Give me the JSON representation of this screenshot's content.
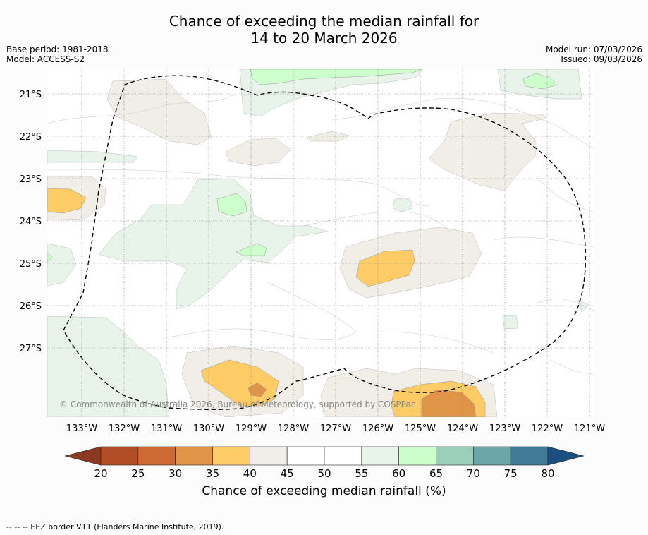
{
  "title_line1": "Chance of exceeding the median rainfall for",
  "title_line2": "14 to 20 March 2026",
  "base_period": "Base period: 1981-2018",
  "model": "Model: ACCESS-S2",
  "model_run": "Model run: 07/03/2026",
  "issued": "Issued: 09/03/2026",
  "copyright": "© Commonwealth of Australia 2026, Bureau of Meteorology, supported by COSPPac",
  "lat_labels": [
    "21°S",
    "22°S",
    "23°S",
    "24°S",
    "25°S",
    "26°S",
    "27°S"
  ],
  "lon_labels": [
    "133°W",
    "132°W",
    "131°W",
    "130°W",
    "129°W",
    "128°W",
    "127°W",
    "126°W",
    "125°W",
    "124°W",
    "123°W",
    "122°W",
    "121°W"
  ],
  "colorbar": {
    "ticks": [
      "20",
      "25",
      "30",
      "35",
      "40",
      "45",
      "50",
      "55",
      "60",
      "65",
      "70",
      "75",
      "80"
    ],
    "colors": [
      "#b24e26",
      "#cd6a34",
      "#df9447",
      "#fdcc66",
      "#f1ede7",
      "#ffffff",
      "#ffffff",
      "#e8f4e9",
      "#ccffcc",
      "#9ccfb9",
      "#6ca6a8",
      "#3f7a96"
    ],
    "low_extend_color": "#8c3a1f",
    "high_extend_color": "#1a4f80",
    "label": "Chance of exceeding median rainfall (%)"
  },
  "legend_eez": "--  --  -- EEZ border V11 (Flanders Marine Institute, 2019)."
}
